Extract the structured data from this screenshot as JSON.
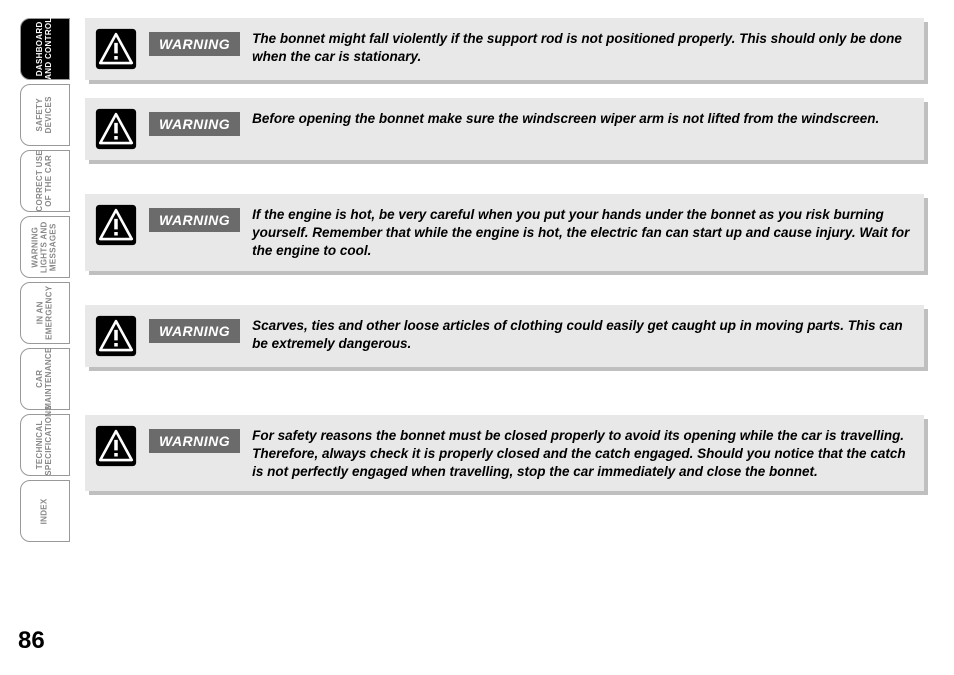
{
  "sidebar": {
    "tabs": [
      {
        "label": "DASHBOARD\nAND CONTROLS",
        "active": true
      },
      {
        "label": "SAFETY\nDEVICES",
        "active": false
      },
      {
        "label": "CORRECT USE\nOF THE CAR",
        "active": false
      },
      {
        "label": "WARNING\nLIGHTS AND\nMESSAGES",
        "active": false
      },
      {
        "label": "IN AN\nEMERGENCY",
        "active": false
      },
      {
        "label": "CAR\nMAINTENANCE",
        "active": false
      },
      {
        "label": "TECHNICAL\nSPECIFICATIONS",
        "active": false
      },
      {
        "label": "INDEX",
        "active": false
      }
    ]
  },
  "warnings": [
    {
      "badge": "WARNING",
      "text": "The bonnet might fall violently if the support rod is not positioned properly. This should only be done when the car is stationary.",
      "gap_after": "sm"
    },
    {
      "badge": "WARNING",
      "text": "Before opening the bonnet make sure the windscreen wiper arm is not lifted from the windscreen.",
      "gap_after": "md"
    },
    {
      "badge": "WARNING",
      "text": "If the engine is hot, be very careful when you put your hands under the bonnet as you risk burning yourself. Remember that while the engine is hot, the electric fan can start up and cause injury. Wait for the engine to cool.",
      "gap_after": "md"
    },
    {
      "badge": "WARNING",
      "text": "Scarves, ties and other loose articles of clothing could easily get caught up in moving parts. This can be extremely dangerous.",
      "gap_after": "lg"
    },
    {
      "badge": "WARNING",
      "text": "For safety reasons the bonnet must be closed properly to avoid its opening while the car is travelling. Therefore, always check it is properly closed and the catch engaged. Should you notice that the catch is not perfectly engaged when travelling, stop the car immediately and close the bonnet.",
      "gap_after": "sm"
    }
  ],
  "page_number": "86",
  "colors": {
    "box_bg": "#e8e8e8",
    "box_shadow": "#bfbfbf",
    "badge_bg": "#6b6b6b",
    "tab_inactive_text": "#888888"
  }
}
